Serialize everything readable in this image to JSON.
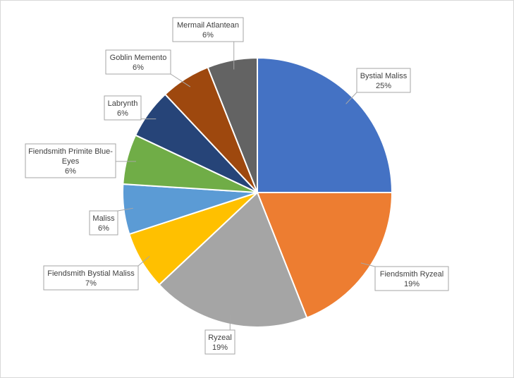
{
  "chart_data": {
    "type": "pie",
    "title": "",
    "slices": [
      {
        "name": "Bystial Maliss",
        "value": 25,
        "label": "25%",
        "color": "#4472C4"
      },
      {
        "name": "Fiendsmith Ryzeal",
        "value": 19,
        "label": "19%",
        "color": "#ED7D31"
      },
      {
        "name": "Ryzeal",
        "value": 19,
        "label": "19%",
        "color": "#A5A5A5"
      },
      {
        "name": "Fiendsmith Bystial Maliss",
        "value": 7,
        "label": "7%",
        "color": "#FFC000"
      },
      {
        "name": "Maliss",
        "value": 6,
        "label": "6%",
        "color": "#5B9BD5"
      },
      {
        "name": "Fiendsmith Primite Blue-Eyes",
        "value": 6,
        "label": "6%",
        "color": "#70AD47"
      },
      {
        "name": "Labrynth",
        "value": 6,
        "label": "6%",
        "color": "#264478"
      },
      {
        "name": "Goblin Memento",
        "value": 6,
        "label": "6%",
        "color": "#9E480E"
      },
      {
        "name": "Mermail Atlantean",
        "value": 6,
        "label": "6%",
        "color": "#636363"
      }
    ],
    "legend": "none",
    "data_labels": "callouts with category name and percentage"
  }
}
